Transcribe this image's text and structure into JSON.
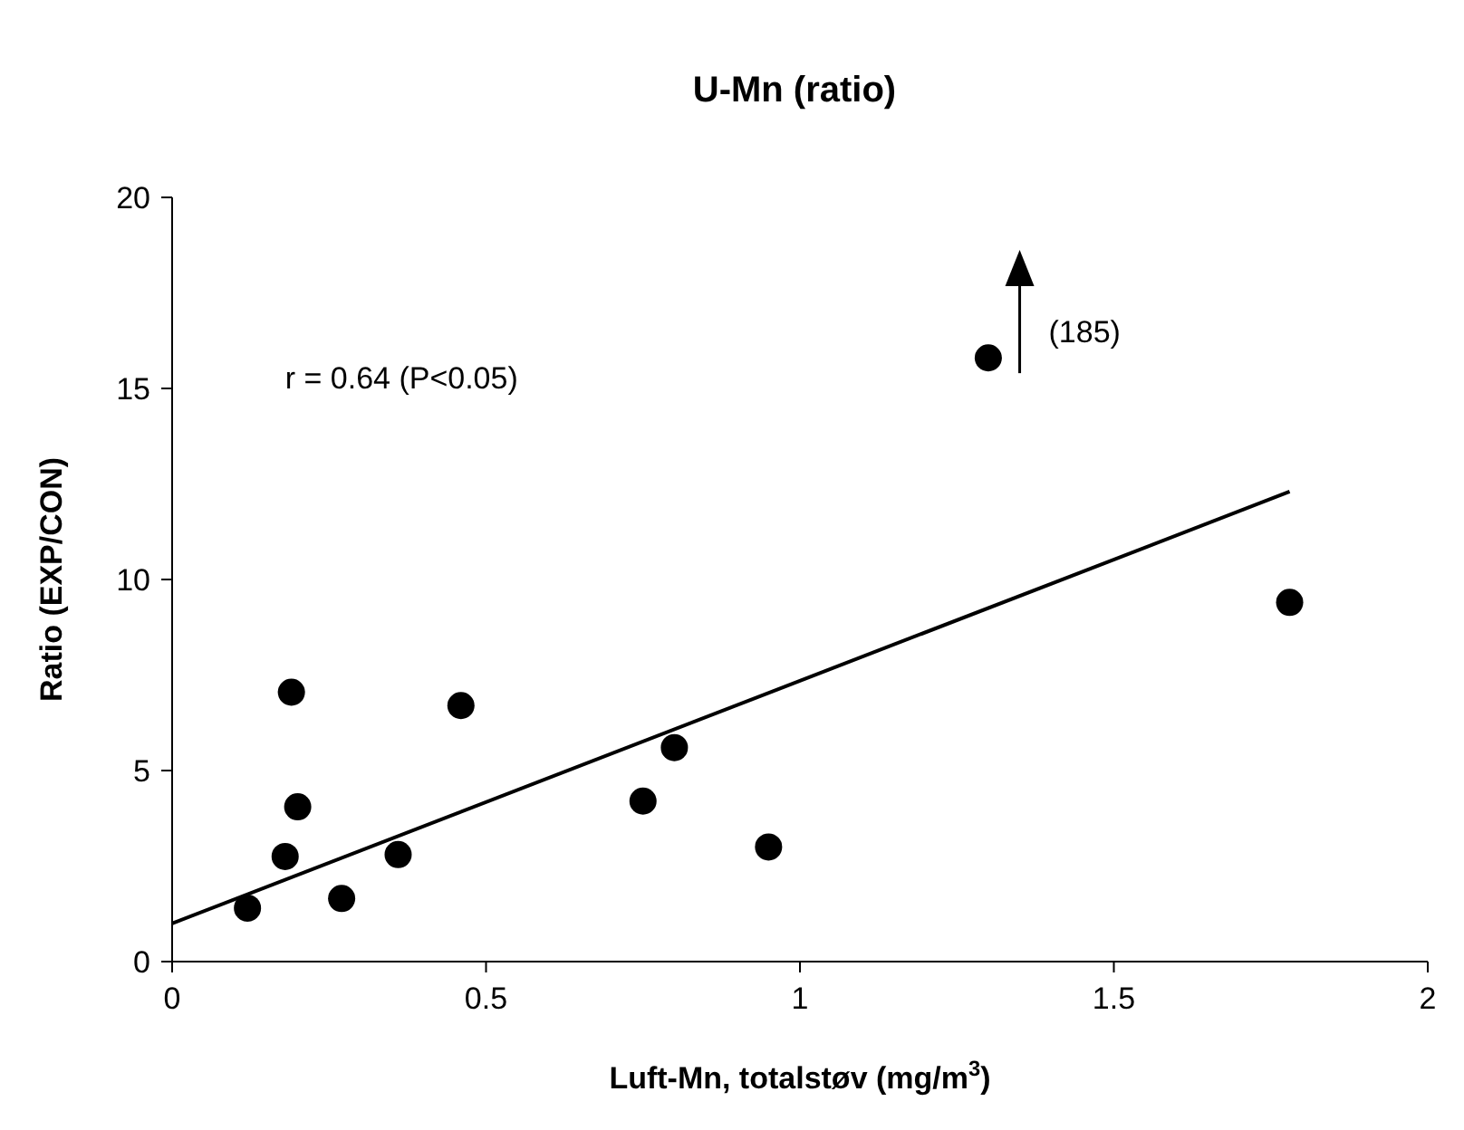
{
  "chart_data": {
    "type": "scatter",
    "title": "U-Mn (ratio)",
    "xlabel": "Luft-Mn, totalstøv (mg/m$^{3}$)",
    "ylabel": "Ratio (EXP/CON)",
    "xlim": [
      0,
      2
    ],
    "ylim": [
      0,
      20
    ],
    "xticks": [
      0,
      0.5,
      1,
      1.5,
      2
    ],
    "yticks": [
      0,
      5,
      10,
      15,
      20
    ],
    "grid": false,
    "marker": "circle",
    "annotations": [
      "r = 0.64 (P<0.05)",
      "(185)"
    ],
    "series": [
      {
        "color": "#000000",
        "x": [
          0.12,
          0.18,
          0.19,
          0.2,
          0.27,
          0.36,
          0.46,
          0.75,
          0.8,
          0.95,
          1.3,
          1.78
        ],
        "values": [
          1.4,
          2.75,
          7.05,
          4.05,
          1.65,
          2.8,
          6.7,
          4.2,
          5.6,
          3.0,
          15.8,
          9.4
        ]
      },
      {
        "type": "line",
        "color": "#000000",
        "line_style": "solid",
        "marker": "none",
        "x": [
          0,
          1.78
        ],
        "values": [
          1.0,
          12.3
        ]
      }
    ]
  }
}
